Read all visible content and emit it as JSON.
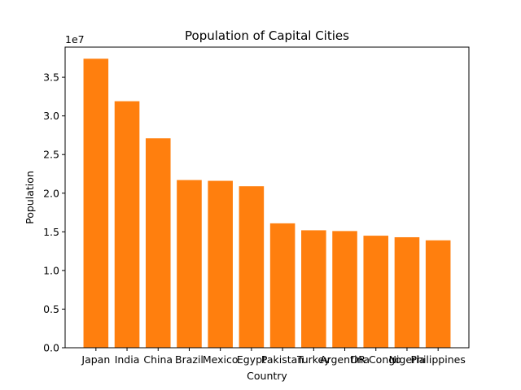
{
  "chart_data": {
    "type": "bar",
    "title": "Population of Capital Cities",
    "xlabel": "Country",
    "ylabel": "Population",
    "y_offset_text": "1e7",
    "categories": [
      "Japan",
      "India",
      "China",
      "Brazil",
      "Mexico",
      "Egypt",
      "Pakistan",
      "Turkey",
      "Argentina",
      "DR Congo",
      "Nigeria",
      "Philippines"
    ],
    "values": [
      37400000,
      31900000,
      27100000,
      21700000,
      21600000,
      20900000,
      16100000,
      15200000,
      15100000,
      14500000,
      14300000,
      13900000
    ],
    "ylim": [
      0,
      38900000
    ],
    "yticks": [
      0,
      5000000,
      10000000,
      15000000,
      20000000,
      25000000,
      30000000,
      35000000
    ],
    "ytick_labels": [
      "0.0",
      "0.5",
      "1.0",
      "1.5",
      "2.0",
      "2.5",
      "3.0",
      "3.5"
    ],
    "bar_color": "#ff7f0e",
    "grid": false,
    "legend": "none"
  }
}
